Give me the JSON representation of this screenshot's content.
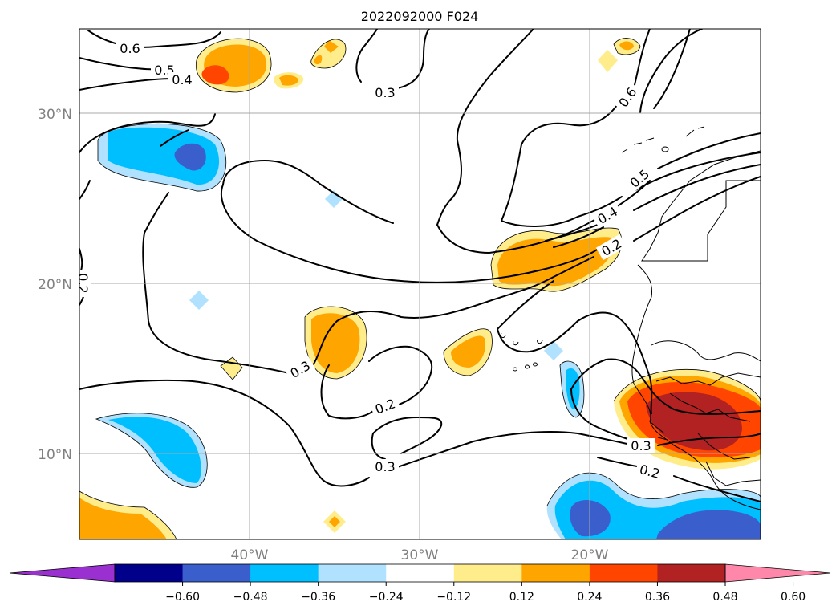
{
  "title": "2022092000 F024",
  "lat_labels": [
    "30°N",
    "20°N",
    "10°N"
  ],
  "lon_labels": [
    "40°W",
    "30°W",
    "20°W"
  ],
  "contour_labels": [
    "0.6",
    "0.5",
    "0.4",
    "0.3",
    "0.6",
    "0.5",
    "0.4",
    "0.2",
    "0.2",
    "0.3",
    "0.2",
    "0.3",
    "0.3",
    "0.2"
  ],
  "colorbar": {
    "ticks": [
      "−0.60",
      "−0.48",
      "−0.36",
      "−0.24",
      "−0.12",
      "0.12",
      "0.24",
      "0.36",
      "0.48",
      "0.60"
    ],
    "colors": [
      "#9b30d0",
      "#00008b",
      "#3a5fcd",
      "#00bfff",
      "#b0e2ff",
      "#ffffff",
      "#ffec8b",
      "#ffa500",
      "#ff4500",
      "#b22222",
      "#ff88aa"
    ]
  },
  "fill_colors": {
    "light_blue": "#b0e2ff",
    "blue": "#00bfff",
    "dark_blue": "#3a5fcd",
    "light_yellow": "#ffec8b",
    "orange": "#ffa500",
    "red_orange": "#ff4500",
    "dark_red": "#b22222"
  }
}
